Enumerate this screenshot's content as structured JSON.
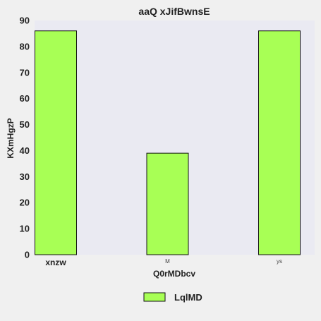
{
  "chart_data": {
    "type": "bar",
    "title": "aaQ xJifBwnsE",
    "xlabel": "Q0rMDbcv",
    "ylabel": "KXmHgzP",
    "categories": [
      "xnzw",
      "M",
      "ys"
    ],
    "series": [
      {
        "name": "LqlMD",
        "values": [
          86,
          39,
          86
        ]
      }
    ],
    "ylim": [
      0,
      90
    ],
    "yticks": [
      0,
      10,
      20,
      30,
      40,
      50,
      60,
      70,
      80,
      90
    ],
    "grid": false,
    "legend_position": "bottom",
    "colors": {
      "bar": "#a8ff55",
      "bar_edge": "#111111",
      "plot_bg": "#eaeaf2",
      "page_bg": "#f0f0f0"
    }
  }
}
